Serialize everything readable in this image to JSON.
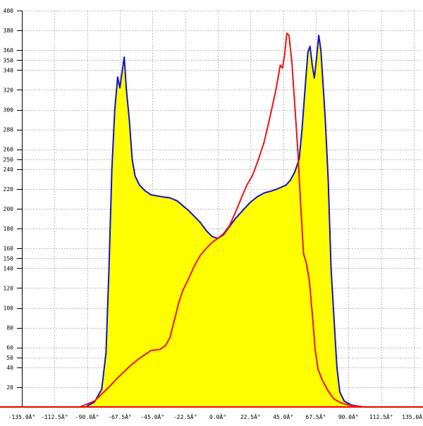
{
  "chart_data": {
    "type": "area",
    "title": "",
    "xlabel": "",
    "ylabel": "",
    "xlim": [
      -135,
      135
    ],
    "ylim": [
      0,
      400
    ],
    "grid": true,
    "legend": "none",
    "x_ticks": [
      {
        "value": -135.0,
        "label": "-135.0Â°"
      },
      {
        "value": -112.5,
        "label": "-112.5Â°"
      },
      {
        "value": -90.0,
        "label": "-90.0Â°"
      },
      {
        "value": -67.5,
        "label": "-67.5Â°"
      },
      {
        "value": -45.0,
        "label": "-45.0Â°"
      },
      {
        "value": -22.5,
        "label": "-22.5Â°"
      },
      {
        "value": 0.0,
        "label": "0.0Â°"
      },
      {
        "value": 22.5,
        "label": "22.5Â°"
      },
      {
        "value": 45.0,
        "label": "45.0Â°"
      },
      {
        "value": 67.5,
        "label": "67.5Â°"
      },
      {
        "value": 90.0,
        "label": "90.0Â°"
      },
      {
        "value": 112.5,
        "label": "112.5Â°"
      },
      {
        "value": 135.0,
        "label": "135.0Â°"
      }
    ],
    "y_ticks": [
      {
        "value": 20,
        "label": "20"
      },
      {
        "value": 40,
        "label": "40"
      },
      {
        "value": 50,
        "label": "50"
      },
      {
        "value": 60,
        "label": "60"
      },
      {
        "value": 80,
        "label": "80"
      },
      {
        "value": 100,
        "label": "100"
      },
      {
        "value": 120,
        "label": "120"
      },
      {
        "value": 140,
        "label": "140"
      },
      {
        "value": 150,
        "label": "150"
      },
      {
        "value": 160,
        "label": "160"
      },
      {
        "value": 180,
        "label": "180"
      },
      {
        "value": 200,
        "label": "200"
      },
      {
        "value": 220,
        "label": "220"
      },
      {
        "value": 240,
        "label": "240"
      },
      {
        "value": 250,
        "label": "250"
      },
      {
        "value": 260,
        "label": "260"
      },
      {
        "value": 280,
        "label": "280"
      },
      {
        "value": 300,
        "label": "300"
      },
      {
        "value": 320,
        "label": "320"
      },
      {
        "value": 340,
        "label": "340"
      },
      {
        "value": 350,
        "label": "350"
      },
      {
        "value": 360,
        "label": "360"
      },
      {
        "value": 380,
        "label": "380"
      },
      {
        "value": 400,
        "label": "400"
      }
    ],
    "colors": {
      "fill": "#ffff00",
      "blue_series": "#1010cc",
      "red_series": "#ee1111",
      "baseline": "#ee0000",
      "grid": "#b8b8b8",
      "axis": "#000000"
    },
    "series": [
      {
        "color": "#1010cc",
        "filled": true,
        "points": [
          [
            -90,
            1
          ],
          [
            -85,
            5
          ],
          [
            -80,
            18
          ],
          [
            -77,
            55
          ],
          [
            -75,
            140
          ],
          [
            -73,
            240
          ],
          [
            -71,
            300
          ],
          [
            -69,
            333
          ],
          [
            -67.5,
            322
          ],
          [
            -66,
            338
          ],
          [
            -64.5,
            353
          ],
          [
            -63,
            320
          ],
          [
            -61,
            290
          ],
          [
            -59,
            250
          ],
          [
            -57,
            233
          ],
          [
            -54,
            224
          ],
          [
            -50,
            218
          ],
          [
            -46,
            214
          ],
          [
            -42,
            213
          ],
          [
            -38,
            212
          ],
          [
            -33,
            211
          ],
          [
            -28,
            208
          ],
          [
            -24,
            203
          ],
          [
            -20,
            198
          ],
          [
            -16,
            192
          ],
          [
            -12,
            186
          ],
          [
            -8,
            178
          ],
          [
            -4,
            172
          ],
          [
            0,
            170
          ],
          [
            4,
            174
          ],
          [
            8,
            182
          ],
          [
            12,
            190
          ],
          [
            17,
            198
          ],
          [
            22,
            206
          ],
          [
            27,
            212
          ],
          [
            32,
            216
          ],
          [
            37,
            218
          ],
          [
            41,
            220
          ],
          [
            44,
            222
          ],
          [
            47,
            224
          ],
          [
            50,
            229
          ],
          [
            53,
            237
          ],
          [
            56,
            250
          ],
          [
            58,
            280
          ],
          [
            60,
            320
          ],
          [
            62,
            358
          ],
          [
            63.5,
            364
          ],
          [
            65,
            345
          ],
          [
            66.5,
            332
          ],
          [
            68,
            352
          ],
          [
            69.5,
            375
          ],
          [
            71,
            360
          ],
          [
            72.5,
            325
          ],
          [
            74,
            290
          ],
          [
            76,
            230
          ],
          [
            78,
            140
          ],
          [
            80,
            90
          ],
          [
            82,
            40
          ],
          [
            84,
            15
          ],
          [
            87,
            6
          ],
          [
            92,
            2
          ],
          [
            100,
            0
          ]
        ]
      },
      {
        "color": "#ee1111",
        "filled": false,
        "points": [
          [
            -95,
            0
          ],
          [
            -90,
            3
          ],
          [
            -85,
            6
          ],
          [
            -80,
            13
          ],
          [
            -75,
            20
          ],
          [
            -70,
            28
          ],
          [
            -65,
            35
          ],
          [
            -60,
            42
          ],
          [
            -55,
            48
          ],
          [
            -50,
            53
          ],
          [
            -46,
            57
          ],
          [
            -40,
            58
          ],
          [
            -36,
            62
          ],
          [
            -33,
            70
          ],
          [
            -30,
            87
          ],
          [
            -27,
            105
          ],
          [
            -24,
            118
          ],
          [
            -20,
            130
          ],
          [
            -16,
            143
          ],
          [
            -12,
            153
          ],
          [
            -8,
            160
          ],
          [
            -4,
            166
          ],
          [
            0,
            170
          ],
          [
            4,
            175
          ],
          [
            8,
            183
          ],
          [
            12,
            196
          ],
          [
            16,
            210
          ],
          [
            20,
            224
          ],
          [
            24,
            234
          ],
          [
            28,
            250
          ],
          [
            32,
            268
          ],
          [
            36,
            293
          ],
          [
            40,
            320
          ],
          [
            43,
            345
          ],
          [
            44.5,
            342
          ],
          [
            46,
            355
          ],
          [
            47.5,
            377
          ],
          [
            49,
            375
          ],
          [
            51,
            348
          ],
          [
            53,
            305
          ],
          [
            55,
            260
          ],
          [
            57,
            205
          ],
          [
            59,
            155
          ],
          [
            61,
            145
          ],
          [
            63,
            128
          ],
          [
            65,
            95
          ],
          [
            67,
            58
          ],
          [
            69,
            38
          ],
          [
            72,
            27
          ],
          [
            76,
            16
          ],
          [
            80,
            8
          ],
          [
            85,
            4
          ],
          [
            90,
            2
          ],
          [
            100,
            0
          ]
        ]
      }
    ]
  }
}
